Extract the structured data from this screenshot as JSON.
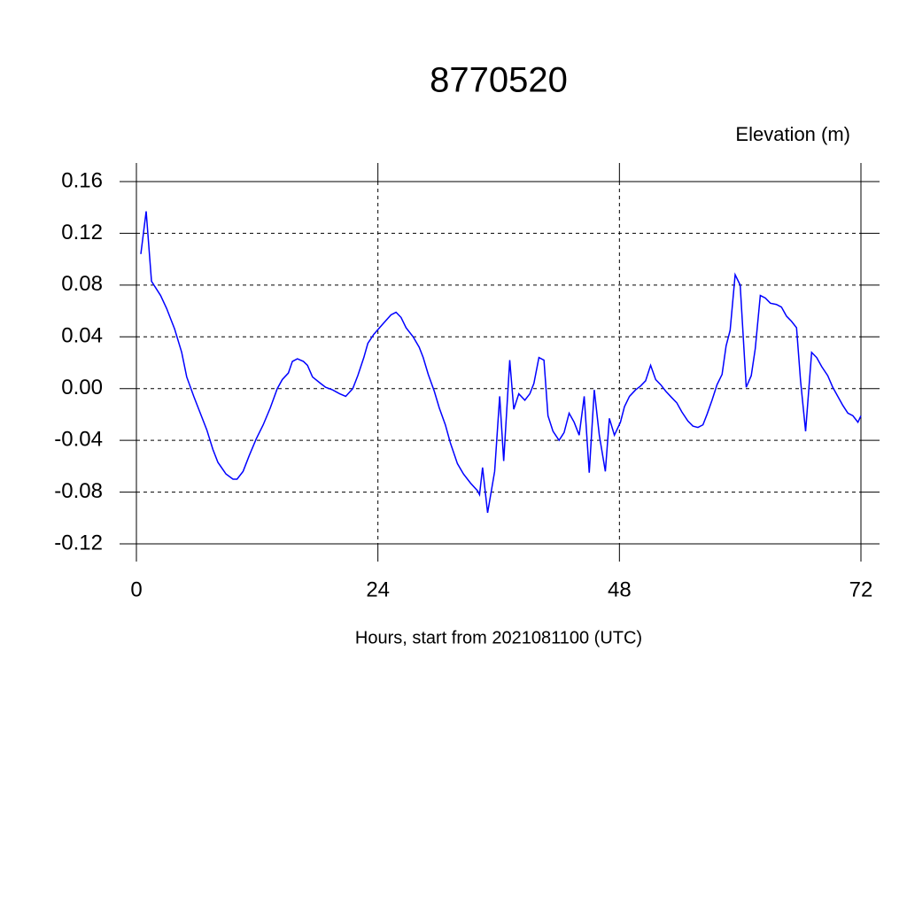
{
  "chart_data": {
    "type": "line",
    "title": "8770520",
    "subtitle": "Elevation (m)",
    "x_label": "Hours, start from 2021081100 (UTC)",
    "xlim": [
      0,
      72
    ],
    "xticks": [
      0,
      24,
      48,
      72
    ],
    "ylim": [
      -0.12,
      0.16
    ],
    "yticks": [
      -0.12,
      -0.08,
      -0.04,
      {
        "value": 0,
        "label": "0.00"
      },
      0.04,
      0.08,
      0.12,
      0.16
    ],
    "grid": true,
    "series": [
      {
        "color": "#0000ff",
        "x": [
          0.44,
          0.97,
          1.5,
          2.4,
          3.0,
          3.8,
          4.5,
          5.0,
          5.7,
          6.2,
          7.0,
          7.6,
          8.1,
          8.9,
          9.6,
          10.0,
          10.6,
          11.2,
          11.9,
          12.6,
          13.3,
          14.0,
          14.5,
          15.1,
          15.5,
          16.0,
          16.6,
          17.0,
          17.5,
          18.3,
          18.8,
          19.5,
          20.2,
          20.8,
          21.5,
          22.0,
          22.6,
          23.0,
          23.6,
          24.5,
          25.3,
          25.8,
          26.3,
          26.8,
          27.5,
          28.1,
          28.5,
          29.0,
          29.6,
          30.1,
          30.7,
          31.2,
          31.9,
          32.5,
          33.2,
          33.9,
          34.1,
          34.4,
          34.9,
          35.6,
          36.1,
          36.5,
          37.1,
          37.5,
          38.0,
          38.6,
          39.1,
          39.5,
          40.0,
          40.5,
          40.9,
          41.4,
          42.0,
          42.5,
          43.0,
          43.5,
          44.0,
          44.5,
          45.0,
          45.5,
          46.0,
          46.6,
          47.0,
          47.5,
          48.1,
          48.5,
          49.0,
          49.6,
          50.1,
          50.6,
          51.1,
          51.6,
          52.1,
          52.6,
          53.2,
          53.7,
          54.2,
          54.8,
          55.3,
          55.8,
          56.3,
          56.7,
          57.2,
          57.7,
          58.2,
          58.6,
          59.0,
          59.5,
          60.0,
          60.6,
          61.1,
          61.5,
          62.0,
          62.5,
          63.0,
          63.6,
          64.1,
          64.6,
          65.1,
          65.6,
          66.0,
          66.5,
          67.1,
          67.6,
          68.1,
          68.7,
          69.2,
          69.7,
          70.2,
          70.7,
          71.2,
          71.7,
          72.0
        ],
        "values": [
          0.104,
          0.137,
          0.083,
          0.072,
          0.062,
          0.046,
          0.028,
          0.009,
          -0.006,
          -0.016,
          -0.032,
          -0.047,
          -0.057,
          -0.066,
          -0.07,
          -0.07,
          -0.064,
          -0.052,
          -0.039,
          -0.028,
          -0.015,
          0.0,
          0.007,
          0.012,
          0.021,
          0.023,
          0.021,
          0.018,
          0.009,
          0.004,
          0.001,
          -0.001,
          -0.004,
          -0.006,
          0.0,
          0.01,
          0.024,
          0.035,
          0.042,
          0.05,
          0.057,
          0.059,
          0.055,
          0.047,
          0.04,
          0.032,
          0.024,
          0.011,
          -0.002,
          -0.015,
          -0.028,
          -0.042,
          -0.058,
          -0.066,
          -0.073,
          -0.079,
          -0.082,
          -0.061,
          -0.096,
          -0.064,
          -0.006,
          -0.056,
          0.022,
          -0.016,
          -0.004,
          -0.009,
          -0.004,
          0.004,
          0.024,
          0.022,
          -0.021,
          -0.033,
          -0.04,
          -0.034,
          -0.019,
          -0.026,
          -0.036,
          -0.006,
          -0.065,
          -0.001,
          -0.036,
          -0.064,
          -0.023,
          -0.036,
          -0.026,
          -0.014,
          -0.006,
          -0.001,
          0.002,
          0.006,
          0.018,
          0.007,
          0.003,
          -0.002,
          -0.007,
          -0.011,
          -0.018,
          -0.025,
          -0.029,
          -0.03,
          -0.028,
          -0.02,
          -0.009,
          0.003,
          0.011,
          0.033,
          0.045,
          0.088,
          0.08,
          0.001,
          0.01,
          0.031,
          0.072,
          0.07,
          0.066,
          0.065,
          0.063,
          0.056,
          0.052,
          0.047,
          0.006,
          -0.033,
          0.028,
          0.024,
          0.017,
          0.01,
          0.001,
          -0.006,
          -0.013,
          -0.019,
          -0.021,
          -0.026,
          -0.021
        ]
      }
    ]
  }
}
